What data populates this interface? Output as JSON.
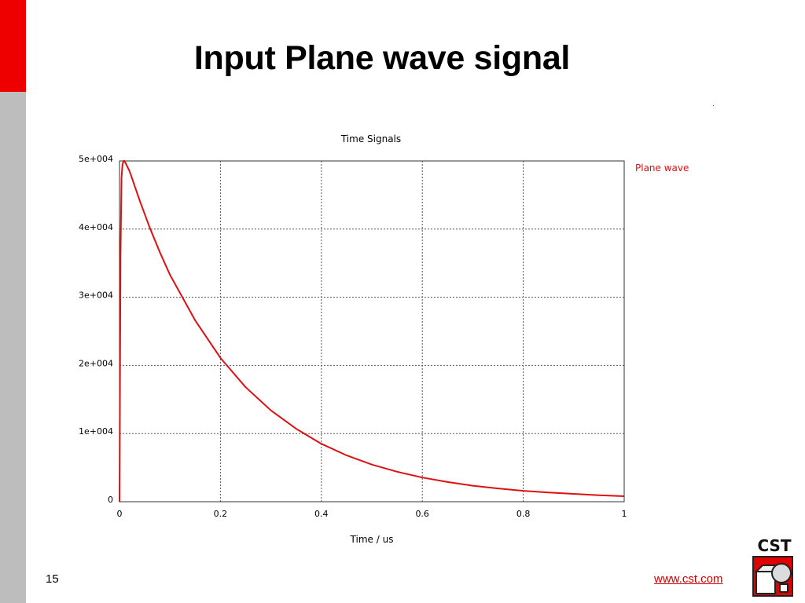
{
  "slide": {
    "title": "Input Plane wave signal",
    "page_number": "15",
    "website": "www.cst.com",
    "dot": "·",
    "logo_text": "CST"
  },
  "colors": {
    "sidebar_red": "#ee0000",
    "sidebar_gray": "#bdbdbd",
    "series": "#dd1111",
    "link": "#cc0000"
  },
  "chart_data": {
    "type": "line",
    "title": "Time Signals",
    "xlabel": "Time / us",
    "ylabel": "",
    "xlim": [
      0,
      1
    ],
    "ylim": [
      0,
      50000
    ],
    "x_ticks": [
      0,
      0.2,
      0.4,
      0.6,
      0.8,
      1
    ],
    "x_tick_labels": [
      "0",
      "0.2",
      "0.4",
      "0.6",
      "0.8",
      "1"
    ],
    "y_ticks": [
      0,
      10000,
      20000,
      30000,
      40000,
      50000
    ],
    "y_tick_labels": [
      "0",
      "1e+004",
      "2e+004",
      "3e+004",
      "4e+004",
      "5e+004"
    ],
    "grid": true,
    "legend_position": "right",
    "series": [
      {
        "name": "Plane wave",
        "color": "#dd1111",
        "x": [
          0,
          0.002,
          0.004,
          0.006,
          0.008,
          0.01,
          0.02,
          0.04,
          0.06,
          0.08,
          0.1,
          0.15,
          0.2,
          0.25,
          0.3,
          0.35,
          0.4,
          0.45,
          0.5,
          0.55,
          0.6,
          0.65,
          0.7,
          0.75,
          0.8,
          0.85,
          0.9,
          0.95,
          1.0
        ],
        "y": [
          0,
          36000,
          47500,
          49500,
          50000,
          50000,
          48500,
          44200,
          40200,
          36600,
          33300,
          26600,
          21100,
          16800,
          13400,
          10700,
          8500,
          6800,
          5450,
          4400,
          3550,
          2900,
          2350,
          1950,
          1600,
          1350,
          1150,
          950,
          800
        ]
      }
    ]
  }
}
